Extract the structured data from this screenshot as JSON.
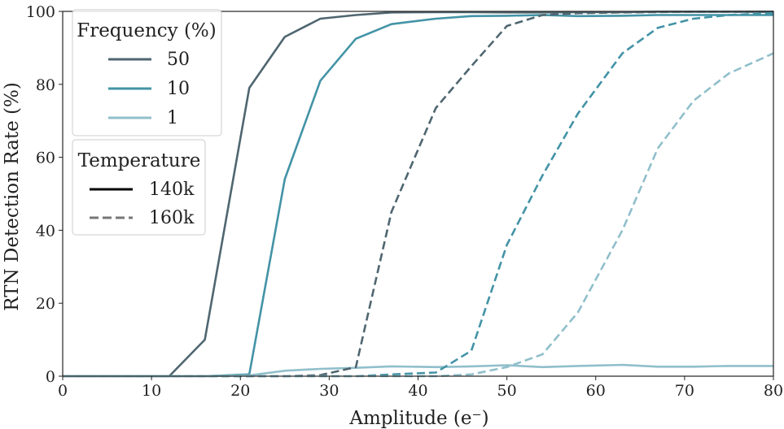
{
  "chart_data": {
    "type": "line",
    "xlabel": "Amplitude (e⁻)",
    "ylabel": "RTN Detection Rate (%)",
    "xlim": [
      0,
      80
    ],
    "ylim": [
      0,
      100
    ],
    "xticks": [
      0,
      10,
      20,
      30,
      40,
      50,
      60,
      70,
      80
    ],
    "yticks": [
      0,
      20,
      40,
      60,
      80,
      100
    ],
    "grid": false,
    "legend_placement": "top-left",
    "legends": {
      "frequency": {
        "title": "Frequency (%)",
        "entries": [
          {
            "label": "50",
            "color": "#4f6670"
          },
          {
            "label": "10",
            "color": "#4393a6"
          },
          {
            "label": "1",
            "color": "#90bfcb"
          }
        ]
      },
      "temperature": {
        "title": "Temperature",
        "entries": [
          {
            "label": "140k",
            "color": "#000000",
            "style": "solid"
          },
          {
            "label": "160k",
            "color": "#777777",
            "style": "dashed"
          }
        ]
      }
    },
    "series": [
      {
        "frequency": "50",
        "temperature": "140k",
        "color": "#4f6670",
        "style": "solid",
        "x": [
          0,
          12,
          16,
          21,
          25,
          29,
          33,
          37,
          42,
          46,
          50,
          54,
          58,
          63,
          67,
          71,
          75,
          80
        ],
        "y": [
          0,
          0,
          10,
          79,
          93,
          98,
          99,
          99.7,
          99.8,
          99.8,
          99.7,
          99.7,
          99.8,
          99.8,
          99.9,
          99.9,
          99.9,
          99.9
        ]
      },
      {
        "frequency": "10",
        "temperature": "140k",
        "color": "#4393a6",
        "style": "solid",
        "x": [
          0,
          12,
          16,
          21,
          25,
          29,
          33,
          37,
          42,
          46,
          50,
          54,
          58,
          63,
          67,
          71,
          75,
          80
        ],
        "y": [
          0,
          0,
          0,
          0.5,
          54,
          81,
          92.5,
          96.5,
          98,
          98.7,
          98.8,
          99,
          98.7,
          98.8,
          99,
          99,
          99,
          99
        ]
      },
      {
        "frequency": "1",
        "temperature": "140k",
        "color": "#90bfcb",
        "style": "solid",
        "x": [
          0,
          12,
          16,
          21,
          25,
          29,
          33,
          37,
          42,
          46,
          50,
          54,
          58,
          63,
          67,
          71,
          75,
          80
        ],
        "y": [
          0,
          0,
          0,
          0.2,
          1.5,
          2,
          2.3,
          2.7,
          2.5,
          2.7,
          3,
          2.5,
          2.8,
          3.1,
          2.6,
          2.6,
          2.8,
          2.8
        ]
      },
      {
        "frequency": "50",
        "temperature": "160k",
        "color": "#4f6670",
        "style": "dashed",
        "x": [
          0,
          21,
          25,
          29,
          33,
          37,
          42,
          46,
          50,
          54,
          58,
          63,
          67,
          71,
          75,
          80
        ],
        "y": [
          0,
          0,
          0,
          0.3,
          2.5,
          45,
          73.5,
          85,
          96,
          99,
          99.5,
          99.7,
          99.8,
          99.9,
          99.9,
          99.9
        ]
      },
      {
        "frequency": "10",
        "temperature": "160k",
        "color": "#4393a6",
        "style": "dashed",
        "x": [
          0,
          29,
          33,
          37,
          42,
          46,
          50,
          54,
          58,
          63,
          67,
          71,
          75,
          80
        ],
        "y": [
          0,
          0,
          0,
          0.5,
          1,
          7,
          36,
          55,
          72,
          88.5,
          95.5,
          98,
          99,
          99.5
        ]
      },
      {
        "frequency": "1",
        "temperature": "160k",
        "color": "#90bfcb",
        "style": "dashed",
        "x": [
          0,
          33,
          37,
          42,
          46,
          50,
          54,
          58,
          63,
          67,
          71,
          75,
          80
        ],
        "y": [
          0,
          0,
          0,
          0,
          0.5,
          2.5,
          6,
          17.5,
          40,
          62.5,
          75.5,
          83,
          88.5
        ]
      }
    ]
  }
}
